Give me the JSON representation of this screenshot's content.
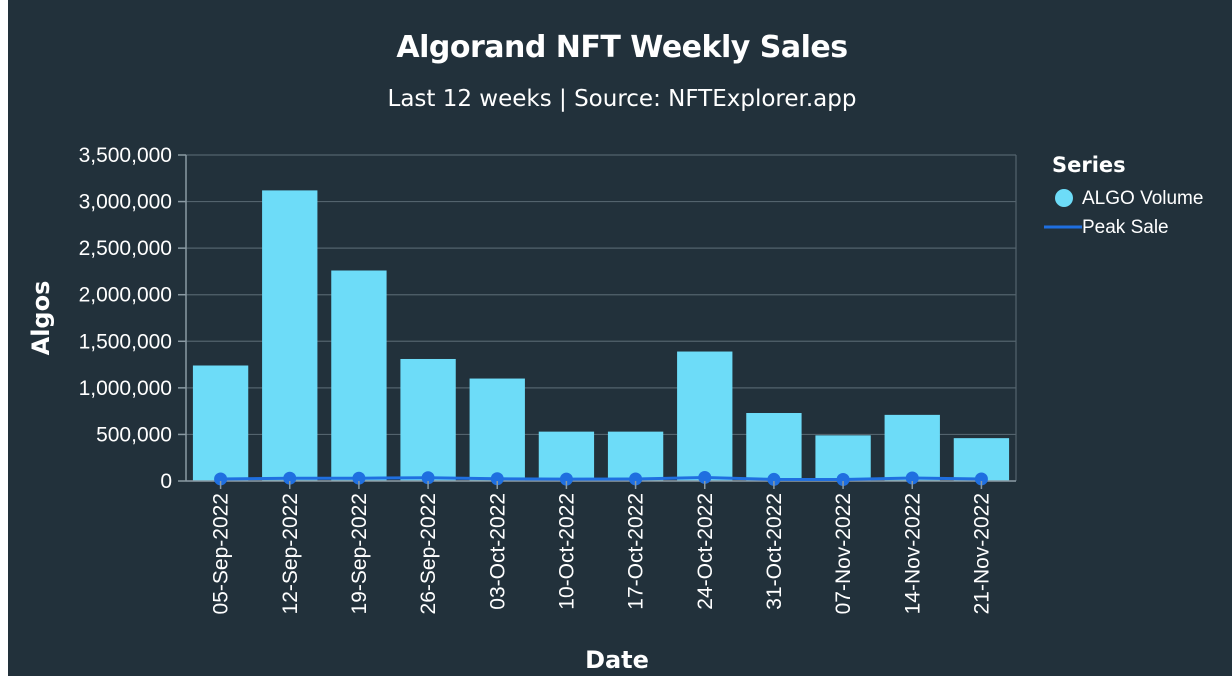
{
  "chart_data": {
    "type": "bar",
    "title": "Algorand NFT Weekly Sales",
    "subtitle": "Last 12 weeks | Source: NFTExplorer.app",
    "xlabel": "Date",
    "ylabel": "Algos",
    "categories": [
      "05-Sep-2022",
      "12-Sep-2022",
      "19-Sep-2022",
      "26-Sep-2022",
      "03-Oct-2022",
      "10-Oct-2022",
      "17-Oct-2022",
      "24-Oct-2022",
      "31-Oct-2022",
      "07-Nov-2022",
      "14-Nov-2022",
      "21-Nov-2022"
    ],
    "ylim": [
      0,
      3500000
    ],
    "yticks": [
      0,
      500000,
      1000000,
      1500000,
      2000000,
      2500000,
      3000000,
      3500000
    ],
    "ytick_labels": [
      "0",
      "500,000",
      "1,000,000",
      "1,500,000",
      "2,000,000",
      "2,500,000",
      "3,000,000",
      "3,500,000"
    ],
    "grid": true,
    "legend": {
      "title": "Series",
      "position": "right"
    },
    "series": [
      {
        "name": "ALGO Volume",
        "type": "bar",
        "color": "#6ddcf8",
        "values": [
          1240000,
          3120000,
          2260000,
          1310000,
          1100000,
          530000,
          530000,
          1390000,
          730000,
          490000,
          710000,
          460000
        ]
      },
      {
        "name": "Peak Sale",
        "type": "line",
        "color": "#1f6fe0",
        "values": [
          22000,
          30000,
          30000,
          35000,
          24000,
          20000,
          22000,
          38000,
          17000,
          16000,
          32000,
          22000
        ]
      }
    ]
  }
}
